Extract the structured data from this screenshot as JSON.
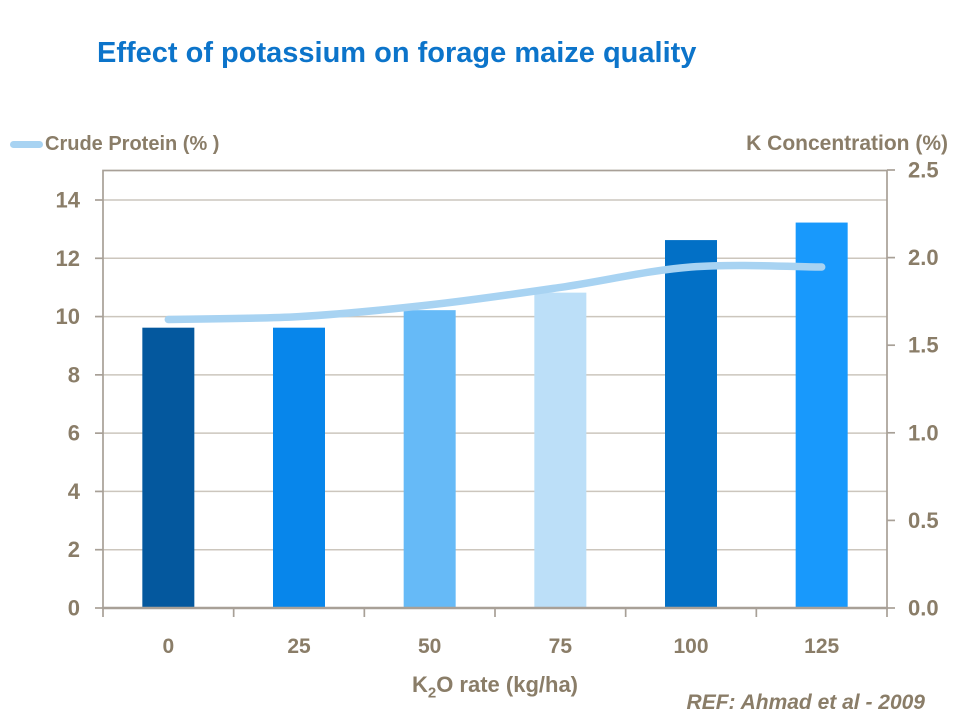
{
  "title": {
    "text": "Effect of potassium on forage maize quality"
  },
  "legend": {
    "label": "Crude Protein (% )"
  },
  "right_axis_title": "K Concentration (%)",
  "x_axis_title": {
    "base": "K",
    "sub": "2",
    "rest": "O rate (kg/ha)"
  },
  "reference": "REF: Ahmad et al - 2009",
  "colors": {
    "title_blue": "#0C74CA",
    "text_taupe": "#8A7D68",
    "frame": "#A8A097",
    "gridline": "#CCC6BD",
    "line_series": "#A8D3F2",
    "bar_palette": [
      "#04589E",
      "#0786EB",
      "#66BAF7",
      "#BCDFF8",
      "#0270C6",
      "#1899FC"
    ]
  },
  "chart_data": {
    "type": "combo bar+line",
    "title": "Effect of potassium on forage maize quality",
    "xlabel": "K2O rate (kg/ha)",
    "categories": [
      "0",
      "25",
      "50",
      "75",
      "100",
      "125"
    ],
    "series": [
      {
        "name": "K Concentration (%)",
        "type": "bar",
        "axis": "right",
        "values": [
          1.6,
          1.6,
          1.7,
          1.8,
          2.1,
          2.2
        ]
      },
      {
        "name": "Crude Protein (%)",
        "type": "line",
        "axis": "left",
        "smooth": true,
        "values": [
          9.9,
          10.0,
          10.4,
          11.0,
          11.7,
          11.7
        ]
      }
    ],
    "left_axis": {
      "min": 0,
      "max": 14,
      "tick_labels": [
        "0",
        "2",
        "4",
        "6",
        "8",
        "10",
        "12",
        "14"
      ],
      "tick_values": [
        0,
        2,
        4,
        6,
        8,
        10,
        12,
        14
      ]
    },
    "right_axis": {
      "min": 0.0,
      "max": 2.5,
      "tick_labels": [
        "0.0",
        "0.5",
        "1.0",
        "1.5",
        "2.0",
        "2.5"
      ],
      "tick_values": [
        0.0,
        0.5,
        1.0,
        1.5,
        2.0,
        2.5
      ]
    },
    "grid": "horizontal, at left-axis ticks",
    "legend_position": "top-left (line series only)",
    "reference": "REF: Ahmad et al - 2009"
  }
}
